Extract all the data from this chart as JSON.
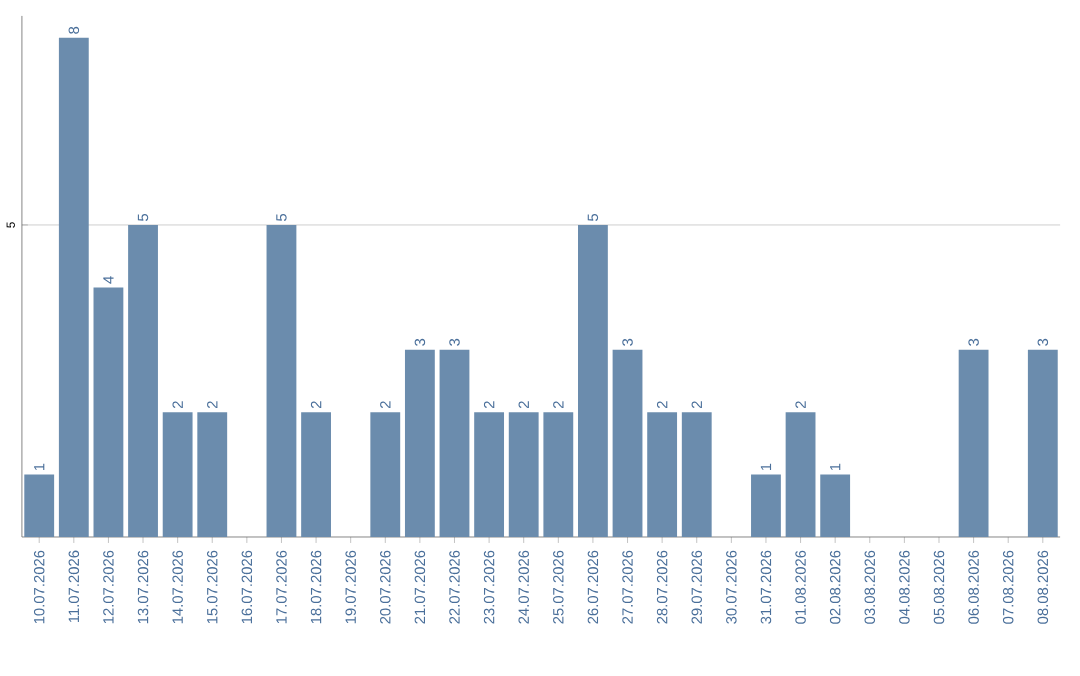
{
  "chart_data": {
    "type": "bar",
    "categories": [
      "10.07.2026",
      "11.07.2026",
      "12.07.2026",
      "13.07.2026",
      "14.07.2026",
      "15.07.2026",
      "16.07.2026",
      "17.07.2026",
      "18.07.2026",
      "19.07.2026",
      "20.07.2026",
      "21.07.2026",
      "22.07.2026",
      "23.07.2026",
      "24.07.2026",
      "25.07.2026",
      "26.07.2026",
      "27.07.2026",
      "28.07.2026",
      "29.07.2026",
      "30.07.2026",
      "31.07.2026",
      "01.08.2026",
      "02.08.2026",
      "03.08.2026",
      "04.08.2026",
      "05.08.2026",
      "06.08.2026",
      "07.08.2026",
      "08.08.2026"
    ],
    "values": [
      1,
      8,
      4,
      5,
      2,
      2,
      0,
      5,
      2,
      0,
      2,
      3,
      3,
      2,
      2,
      2,
      5,
      3,
      2,
      2,
      0,
      1,
      2,
      1,
      0,
      0,
      0,
      3,
      0,
      3
    ],
    "value_labels": [
      "1",
      "8",
      "4",
      "5",
      "2",
      "2",
      null,
      "5",
      "2",
      null,
      "2",
      "3",
      "3",
      "2",
      "2",
      "2",
      "5",
      "3",
      "2",
      "2",
      null,
      "1",
      "2",
      "1",
      null,
      null,
      null,
      "3",
      null,
      "3"
    ],
    "color": "#6b8cad",
    "ylim": [
      0,
      8.35
    ],
    "yticks": [
      5
    ],
    "grid": "y"
  }
}
